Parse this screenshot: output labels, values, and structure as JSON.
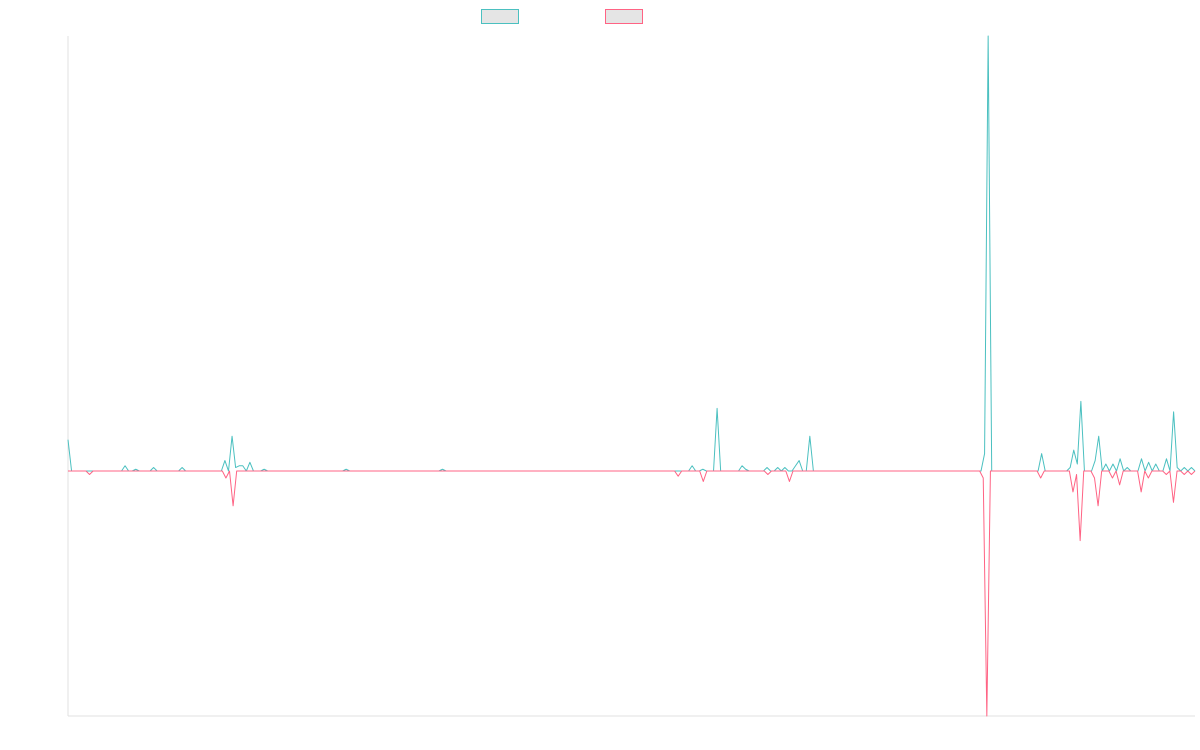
{
  "chart_data": {
    "type": "line",
    "title": "",
    "xlabel": "",
    "ylabel": "",
    "grid": false,
    "legend_position": "top-center",
    "ylim": [
      -0.75,
      1.0
    ],
    "y_baseline": 0,
    "series": [
      {
        "name": "",
        "color": "#4bc0c0",
        "values": [
          0.09,
          0,
          0,
          0,
          0,
          0,
          0,
          0,
          0,
          0,
          0,
          0,
          0,
          0,
          0,
          0,
          0.015,
          0,
          0,
          0.005,
          0,
          0,
          0,
          0,
          0.01,
          0,
          0,
          0,
          0,
          0,
          0,
          0,
          0.01,
          0,
          0,
          0,
          0,
          0,
          0,
          0,
          0,
          0,
          0,
          0,
          0.03,
          0,
          0.1,
          0.01,
          0.015,
          0.015,
          0,
          0.025,
          0,
          0,
          0,
          0.005,
          0,
          0,
          0,
          0,
          0,
          0,
          0,
          0,
          0,
          0,
          0,
          0,
          0,
          0,
          0,
          0,
          0,
          0,
          0,
          0,
          0,
          0,
          0.005,
          0,
          0,
          0,
          0,
          0,
          0,
          0,
          0,
          0,
          0,
          0,
          0,
          0,
          0,
          0,
          0,
          0,
          0,
          0,
          0,
          0,
          0,
          0,
          0,
          0,
          0,
          0.005,
          0,
          0,
          0,
          0,
          0,
          0,
          0,
          0,
          0,
          0,
          0,
          0,
          0,
          0,
          0,
          0,
          0,
          0,
          0,
          0,
          0,
          0,
          0,
          0,
          0,
          0,
          0,
          0,
          0,
          0,
          0,
          0,
          0,
          0,
          0,
          0,
          0,
          0,
          0,
          0,
          0,
          0,
          0,
          0,
          0,
          0,
          0,
          0,
          0,
          0,
          0,
          0,
          0,
          0,
          0,
          0,
          0,
          0,
          0,
          0,
          0,
          0,
          0,
          0,
          0,
          0,
          0,
          0,
          0,
          0.015,
          0,
          0,
          0.005,
          0,
          0,
          0,
          0.18,
          0,
          0,
          0,
          0,
          0,
          0,
          0.015,
          0.005,
          0,
          0,
          0,
          0,
          0,
          0.01,
          0,
          0,
          0.01,
          0,
          0.01,
          0,
          0,
          0.015,
          0.03,
          0,
          0,
          0.1,
          0,
          0,
          0,
          0,
          0,
          0,
          0,
          0,
          0,
          0,
          0,
          0,
          0,
          0,
          0,
          0,
          0,
          0,
          0,
          0,
          0,
          0,
          0,
          0,
          0,
          0,
          0,
          0,
          0,
          0,
          0,
          0,
          0,
          0,
          0,
          0,
          0,
          0,
          0,
          0,
          0,
          0,
          0,
          0,
          0,
          0,
          0,
          0,
          0.05,
          1.25,
          0,
          0,
          0,
          0,
          0,
          0,
          0,
          0,
          0,
          0,
          0,
          0,
          0,
          0,
          0.05,
          0,
          0,
          0,
          0,
          0,
          0,
          0,
          0.01,
          0.06,
          0.02,
          0.2,
          0,
          0,
          0,
          0.03,
          0.1,
          0,
          0.02,
          0,
          0.02,
          0,
          0.035,
          0,
          0.01,
          0,
          0,
          0,
          0.035,
          0,
          0.025,
          0,
          0.02,
          0,
          0,
          0.035,
          0,
          0.17,
          0.01,
          0,
          0.01,
          0,
          0.01,
          0
        ]
      },
      {
        "name": "",
        "color": "#ff6384",
        "values": [
          0,
          0,
          0,
          0,
          0,
          0,
          -0.01,
          0,
          0,
          0,
          0,
          0,
          0,
          0,
          0,
          0,
          0,
          0,
          0,
          0,
          0,
          0,
          0,
          0,
          0,
          0,
          0,
          0,
          0,
          0,
          0,
          0,
          0,
          0,
          0,
          0,
          0,
          0,
          0,
          0,
          0,
          0,
          0,
          0,
          -0.02,
          0,
          -0.1,
          0,
          0,
          0,
          0,
          0,
          0,
          0,
          0,
          0,
          0,
          0,
          0,
          0,
          0,
          0,
          0,
          0,
          0,
          0,
          0,
          0,
          0,
          0,
          0,
          0,
          0,
          0,
          0,
          0,
          0,
          0,
          0,
          0,
          0,
          0,
          0,
          0,
          0,
          0,
          0,
          0,
          0,
          0,
          0,
          0,
          0,
          0,
          0,
          0,
          0,
          0,
          0,
          0,
          0,
          0,
          0,
          0,
          0,
          0,
          0,
          0,
          0,
          0,
          0,
          0,
          0,
          0,
          0,
          0,
          0,
          0,
          0,
          0,
          0,
          0,
          0,
          0,
          0,
          0,
          0,
          0,
          0,
          0,
          0,
          0,
          0,
          0,
          0,
          0,
          0,
          0,
          0,
          0,
          0,
          0,
          0,
          0,
          0,
          0,
          0,
          0,
          0,
          0,
          0,
          0,
          0,
          0,
          0,
          0,
          0,
          0,
          0,
          0,
          0,
          0,
          0,
          0,
          0,
          0,
          0,
          0,
          0,
          0,
          -0.015,
          0,
          0,
          0,
          0,
          0,
          0,
          -0.03,
          0,
          0,
          0,
          0,
          0,
          0,
          0,
          0,
          0,
          0,
          0,
          0,
          0,
          0,
          0,
          0,
          0,
          -0.01,
          0,
          0,
          0,
          0,
          0,
          -0.03,
          0,
          0,
          0,
          0,
          0,
          0,
          0,
          0,
          0,
          0,
          0,
          0,
          0,
          0,
          0,
          0,
          0,
          0,
          0,
          0,
          0,
          0,
          0,
          0,
          0,
          0,
          0,
          0,
          0,
          0,
          0,
          0,
          0,
          0,
          0,
          0,
          0,
          0,
          0,
          0,
          0,
          0,
          0,
          0,
          0,
          0,
          0,
          0,
          0,
          0,
          0,
          0,
          0,
          -0.02,
          -0.72,
          0,
          0,
          0,
          0,
          0,
          0,
          0,
          0,
          0,
          0,
          0,
          0,
          0,
          0,
          -0.02,
          0,
          0,
          0,
          0,
          0,
          0,
          0,
          0,
          -0.06,
          -0.01,
          -0.2,
          0,
          0,
          0,
          -0.02,
          -0.1,
          0,
          0,
          0,
          -0.02,
          0,
          -0.04,
          0,
          0,
          0,
          0,
          0,
          -0.06,
          0,
          -0.02,
          0,
          0,
          0,
          0,
          -0.01,
          0,
          -0.09,
          0,
          0,
          -0.01,
          0,
          -0.01,
          0
        ]
      }
    ]
  }
}
